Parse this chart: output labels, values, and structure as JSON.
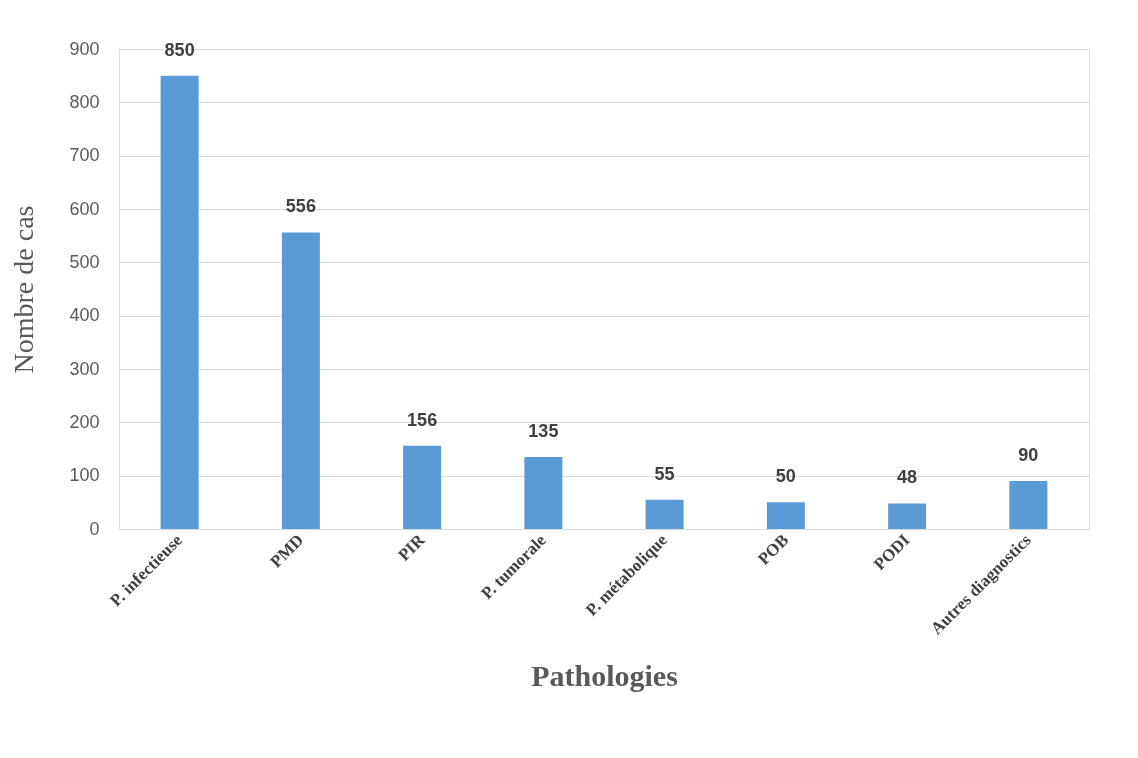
{
  "chart_data": {
    "type": "bar",
    "xlabel": "Pathologies",
    "ylabel": "Nombre de cas",
    "categories": [
      "P. infectieuse",
      "PMD",
      "PIR",
      "P. tumorale",
      "P. métabolique",
      "POB",
      "PODI",
      "Autres diagnostics"
    ],
    "values": [
      850,
      556,
      156,
      135,
      55,
      50,
      48,
      90
    ],
    "color": "#5b9bd5",
    "ylim": [
      0,
      900
    ],
    "yticks": [
      0,
      100,
      200,
      300,
      400,
      500,
      600,
      700,
      800,
      900
    ],
    "grid": "y",
    "data_labels": true
  }
}
